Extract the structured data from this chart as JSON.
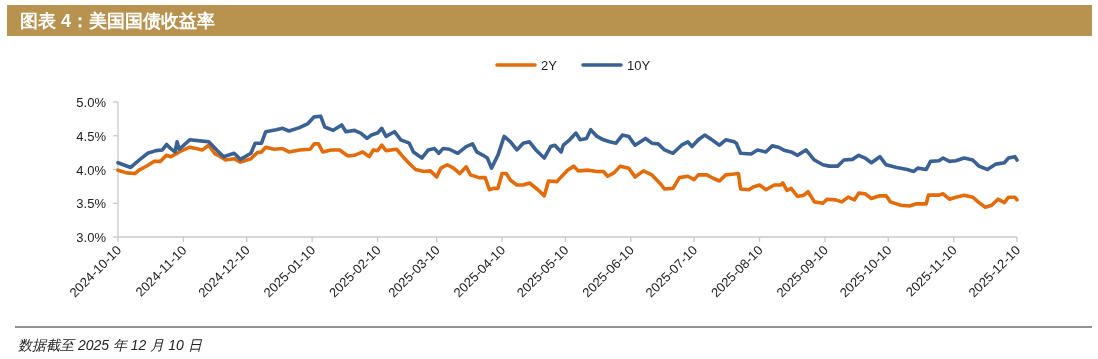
{
  "chart_data": {
    "type": "line",
    "title": "图表 4：美国国债收益率",
    "annotations": [
      "数据截至 2025 年 12 月 10 日"
    ],
    "legend": "top",
    "xlim": [
      "2024-10-10",
      "2025-12-10"
    ],
    "xticks": [
      "2024-10-10",
      "2024-11-10",
      "2024-12-10",
      "2025-01-10",
      "2025-02-10",
      "2025-03-10",
      "2025-04-10",
      "2025-05-10",
      "2025-06-10",
      "2025-07-10",
      "2025-08-10",
      "2025-09-10",
      "2025-10-10",
      "2025-11-10",
      "2025-12-10"
    ],
    "ylim": [
      3,
      5
    ],
    "yticks": [
      {
        "value": 3,
        "label": "3.0%"
      },
      {
        "value": 3.5,
        "label": "3.5%"
      },
      {
        "value": 4,
        "label": "4.0%"
      },
      {
        "value": 4.5,
        "label": "4.5%"
      },
      {
        "value": 5,
        "label": "5.0%"
      }
    ],
    "series": [
      {
        "name": "2Y",
        "color": "#e36c0a",
        "x": [
          "2024-10-10",
          "2024-10-14",
          "2024-10-18",
          "2024-10-20",
          "2024-10-24",
          "2024-10-27",
          "2024-10-30",
          "2024-11-02",
          "2024-11-04",
          "2024-11-07",
          "2024-11-08",
          "2024-11-13",
          "2024-11-16",
          "2024-11-19",
          "2024-11-22",
          "2024-11-25",
          "2024-11-27",
          "2024-11-30",
          "2024-12-04",
          "2024-12-07",
          "2024-12-12",
          "2024-12-15",
          "2024-12-17",
          "2024-12-19",
          "2024-12-23",
          "2024-12-27",
          "2024-12-30",
          "2025-01-04",
          "2025-01-09",
          "2025-01-11",
          "2025-01-13",
          "2025-01-15",
          "2025-01-19",
          "2025-01-23",
          "2025-01-27",
          "2025-01-30",
          "2025-02-03",
          "2025-02-06",
          "2025-02-08",
          "2025-02-10",
          "2025-02-12",
          "2025-02-14",
          "2025-02-19",
          "2025-02-22",
          "2025-02-25",
          "2025-02-28",
          "2025-03-04",
          "2025-03-07",
          "2025-03-10",
          "2025-03-12",
          "2025-03-15",
          "2025-03-18",
          "2025-03-21",
          "2025-03-24",
          "2025-03-26",
          "2025-03-30",
          "2025-04-02",
          "2025-04-04",
          "2025-04-06",
          "2025-04-08",
          "2025-04-10",
          "2025-04-12",
          "2025-04-14",
          "2025-04-17",
          "2025-04-20",
          "2025-04-23",
          "2025-04-27",
          "2025-04-30",
          "2025-05-02",
          "2025-05-06",
          "2025-05-08",
          "2025-05-11",
          "2025-05-14",
          "2025-05-16",
          "2025-05-21",
          "2025-05-25",
          "2025-05-28",
          "2025-05-30",
          "2025-06-02",
          "2025-06-05",
          "2025-06-09",
          "2025-06-12",
          "2025-06-16",
          "2025-06-20",
          "2025-06-24",
          "2025-06-26",
          "2025-06-30",
          "2025-07-03",
          "2025-07-07",
          "2025-07-10",
          "2025-07-12",
          "2025-07-16",
          "2025-07-19",
          "2025-07-22",
          "2025-07-25",
          "2025-07-28",
          "2025-07-31",
          "2025-08-01",
          "2025-08-05",
          "2025-08-07",
          "2025-08-10",
          "2025-08-13",
          "2025-08-17",
          "2025-08-20",
          "2025-08-21",
          "2025-08-23",
          "2025-08-25",
          "2025-08-28",
          "2025-08-31",
          "2025-09-02",
          "2025-09-05",
          "2025-09-09",
          "2025-09-11",
          "2025-09-15",
          "2025-09-18",
          "2025-09-21",
          "2025-09-24",
          "2025-09-26",
          "2025-09-29",
          "2025-10-02",
          "2025-10-06",
          "2025-10-09",
          "2025-10-11",
          "2025-10-16",
          "2025-10-20",
          "2025-10-23",
          "2025-10-28",
          "2025-10-29",
          "2025-11-03",
          "2025-11-05",
          "2025-11-08",
          "2025-11-11",
          "2025-11-15",
          "2025-11-19",
          "2025-11-22",
          "2025-11-25",
          "2025-11-28",
          "2025-12-01",
          "2025-12-04",
          "2025-12-06",
          "2025-12-09",
          "2025-12-10"
        ],
        "values": [
          3.99,
          3.95,
          3.94,
          3.99,
          4.06,
          4.12,
          4.12,
          4.21,
          4.19,
          4.24,
          4.26,
          4.33,
          4.31,
          4.29,
          4.36,
          4.23,
          4.2,
          4.14,
          4.16,
          4.11,
          4.16,
          4.25,
          4.26,
          4.33,
          4.3,
          4.31,
          4.26,
          4.29,
          4.3,
          4.38,
          4.38,
          4.26,
          4.29,
          4.29,
          4.2,
          4.21,
          4.26,
          4.19,
          4.29,
          4.28,
          4.36,
          4.28,
          4.3,
          4.19,
          4.09,
          4.0,
          3.97,
          3.98,
          3.89,
          4.02,
          4.07,
          4.02,
          3.94,
          4.04,
          3.92,
          3.88,
          3.88,
          3.7,
          3.72,
          3.72,
          3.94,
          3.94,
          3.84,
          3.77,
          3.77,
          3.8,
          3.7,
          3.61,
          3.83,
          3.82,
          3.89,
          3.99,
          4.05,
          3.98,
          3.99,
          3.97,
          3.97,
          3.9,
          3.95,
          4.05,
          4.02,
          3.89,
          3.98,
          3.92,
          3.79,
          3.71,
          3.72,
          3.88,
          3.9,
          3.85,
          3.92,
          3.92,
          3.87,
          3.83,
          3.92,
          3.93,
          3.94,
          3.71,
          3.7,
          3.74,
          3.77,
          3.7,
          3.77,
          3.77,
          3.8,
          3.69,
          3.72,
          3.6,
          3.62,
          3.67,
          3.52,
          3.5,
          3.56,
          3.55,
          3.52,
          3.59,
          3.55,
          3.65,
          3.64,
          3.57,
          3.61,
          3.61,
          3.52,
          3.47,
          3.46,
          3.49,
          3.49,
          3.62,
          3.62,
          3.64,
          3.56,
          3.59,
          3.62,
          3.59,
          3.51,
          3.44,
          3.47,
          3.56,
          3.51,
          3.59,
          3.59,
          3.55
        ]
      },
      {
        "name": "10Y",
        "color": "#3a6193",
        "x": [
          "2024-10-10",
          "2024-10-16",
          "2024-10-20",
          "2024-10-24",
          "2024-10-28",
          "2024-10-31",
          "2024-11-02",
          "2024-11-04",
          "2024-11-06",
          "2024-11-07",
          "2024-11-08",
          "2024-11-13",
          "2024-11-19",
          "2024-11-22",
          "2024-11-26",
          "2024-11-29",
          "2024-12-04",
          "2024-12-07",
          "2024-12-12",
          "2024-12-14",
          "2024-12-17",
          "2024-12-19",
          "2024-12-24",
          "2024-12-27",
          "2024-12-30",
          "2025-01-04",
          "2025-01-08",
          "2025-01-11",
          "2025-01-14",
          "2025-01-16",
          "2025-01-20",
          "2025-01-24",
          "2025-01-26",
          "2025-01-30",
          "2025-02-02",
          "2025-02-05",
          "2025-02-07",
          "2025-02-10",
          "2025-02-12",
          "2025-02-14",
          "2025-02-18",
          "2025-02-21",
          "2025-02-25",
          "2025-02-27",
          "2025-03-03",
          "2025-03-06",
          "2025-03-09",
          "2025-03-11",
          "2025-03-13",
          "2025-03-16",
          "2025-03-20",
          "2025-03-24",
          "2025-03-27",
          "2025-03-29",
          "2025-04-01",
          "2025-04-03",
          "2025-04-05",
          "2025-04-08",
          "2025-04-11",
          "2025-04-14",
          "2025-04-17",
          "2025-04-20",
          "2025-04-23",
          "2025-04-26",
          "2025-04-30",
          "2025-05-03",
          "2025-05-05",
          "2025-05-08",
          "2025-05-09",
          "2025-05-12",
          "2025-05-15",
          "2025-05-17",
          "2025-05-20",
          "2025-05-22",
          "2025-05-25",
          "2025-05-28",
          "2025-05-31",
          "2025-06-03",
          "2025-06-06",
          "2025-06-09",
          "2025-06-12",
          "2025-06-17",
          "2025-06-20",
          "2025-06-23",
          "2025-06-26",
          "2025-06-30",
          "2025-07-04",
          "2025-07-07",
          "2025-07-09",
          "2025-07-12",
          "2025-07-15",
          "2025-07-18",
          "2025-07-22",
          "2025-07-25",
          "2025-07-29",
          "2025-07-30",
          "2025-08-01",
          "2025-08-06",
          "2025-08-09",
          "2025-08-13",
          "2025-08-16",
          "2025-08-19",
          "2025-08-22",
          "2025-08-25",
          "2025-08-28",
          "2025-09-01",
          "2025-09-05",
          "2025-09-09",
          "2025-09-12",
          "2025-09-16",
          "2025-09-19",
          "2025-09-23",
          "2025-09-26",
          "2025-09-29",
          "2025-10-02",
          "2025-10-06",
          "2025-10-09",
          "2025-10-14",
          "2025-10-19",
          "2025-10-22",
          "2025-10-24",
          "2025-10-28",
          "2025-10-30",
          "2025-11-03",
          "2025-11-05",
          "2025-11-08",
          "2025-11-11",
          "2025-11-15",
          "2025-11-19",
          "2025-11-22",
          "2025-11-26",
          "2025-11-30",
          "2025-12-04",
          "2025-12-06",
          "2025-12-09",
          "2025-12-10"
        ],
        "values": [
          4.1,
          4.03,
          4.14,
          4.24,
          4.28,
          4.29,
          4.37,
          4.31,
          4.26,
          4.41,
          4.3,
          4.44,
          4.42,
          4.41,
          4.28,
          4.19,
          4.24,
          4.15,
          4.24,
          4.39,
          4.39,
          4.56,
          4.59,
          4.61,
          4.57,
          4.62,
          4.68,
          4.78,
          4.79,
          4.63,
          4.58,
          4.66,
          4.56,
          4.58,
          4.54,
          4.46,
          4.51,
          4.54,
          4.61,
          4.49,
          4.56,
          4.44,
          4.39,
          4.26,
          4.17,
          4.29,
          4.31,
          4.24,
          4.31,
          4.3,
          4.24,
          4.34,
          4.38,
          4.26,
          4.21,
          4.17,
          4.02,
          4.21,
          4.49,
          4.41,
          4.29,
          4.39,
          4.41,
          4.29,
          4.17,
          4.34,
          4.36,
          4.26,
          4.36,
          4.44,
          4.54,
          4.44,
          4.46,
          4.59,
          4.49,
          4.44,
          4.41,
          4.39,
          4.51,
          4.49,
          4.36,
          4.46,
          4.39,
          4.38,
          4.29,
          4.24,
          4.36,
          4.41,
          4.34,
          4.44,
          4.51,
          4.45,
          4.36,
          4.44,
          4.41,
          4.39,
          4.24,
          4.23,
          4.29,
          4.26,
          4.35,
          4.33,
          4.28,
          4.26,
          4.21,
          4.29,
          4.14,
          4.07,
          4.05,
          4.05,
          4.14,
          4.15,
          4.21,
          4.17,
          4.1,
          4.19,
          4.07,
          4.03,
          4.0,
          3.97,
          4.02,
          4.0,
          4.12,
          4.13,
          4.17,
          4.12,
          4.13,
          4.17,
          4.14,
          4.05,
          4.0,
          4.08,
          4.1,
          4.17,
          4.19,
          4.14
        ]
      }
    ]
  }
}
